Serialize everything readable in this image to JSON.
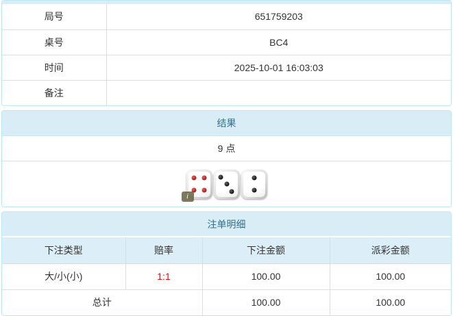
{
  "info_table": {
    "rows": [
      {
        "label": "局号",
        "value": "651759203"
      },
      {
        "label": "桌号",
        "value": "BC4"
      },
      {
        "label": "时间",
        "value": "2025-10-01 16:03:03"
      },
      {
        "label": "备注",
        "value": ""
      }
    ]
  },
  "result_panel": {
    "title": "结果",
    "points": "9 点",
    "dice": [
      {
        "value": 4,
        "color": "red"
      },
      {
        "value": 3,
        "color": "black"
      },
      {
        "value": 2,
        "color": "black"
      }
    ],
    "info_icon_label": "i"
  },
  "bets_panel": {
    "title": "注单明细",
    "columns": [
      "下注类型",
      "赔率",
      "下注金额",
      "派彩金额"
    ],
    "rows": [
      {
        "bet_type": "大/小(小)",
        "odds": "1:1",
        "bet_amount": "100.00",
        "payout_amount": "100.00"
      }
    ],
    "total": {
      "label": "总计",
      "bet_amount": "100.00",
      "payout_amount": "100.00"
    }
  },
  "colors": {
    "panel_border": "#bce8f1",
    "heading_bg": "#d9edf7",
    "heading_text": "#31708f",
    "row_divider": "#dddddd",
    "body_text": "#333333",
    "odds_red": "#ff0000"
  }
}
